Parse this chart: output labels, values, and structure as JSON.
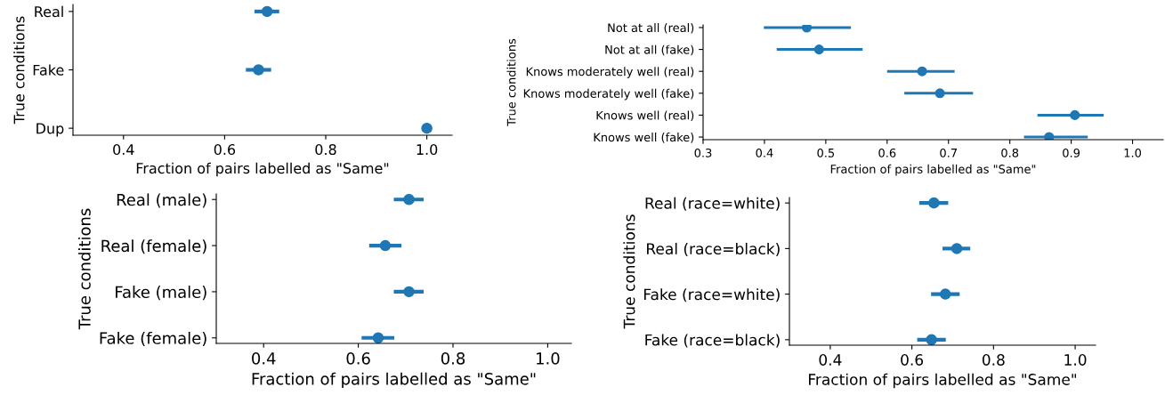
{
  "chart_data": [
    {
      "type": "scatter",
      "orientation": "horizontal",
      "xlabel": "Fraction of pairs labelled as \"Same\"",
      "ylabel": "True conditions",
      "categories": [
        "Real",
        "Fake",
        "Dup"
      ],
      "xlim": [
        0.3,
        1.05
      ],
      "xticks": [
        {
          "value": 0.4,
          "label": "0.4"
        },
        {
          "value": 0.6,
          "label": "0.6"
        },
        {
          "value": 0.8,
          "label": "0.8"
        },
        {
          "value": 1.0,
          "label": "1.0"
        }
      ],
      "marker": "circle",
      "grid": false,
      "series": [
        {
          "color": "#1f77b4",
          "values": [
            0.684,
            0.667,
            1.0
          ],
          "errors": [
            [
              0.659,
              0.708
            ],
            [
              0.642,
              0.692
            ],
            null
          ]
        }
      ]
    },
    {
      "type": "scatter",
      "orientation": "horizontal",
      "xlabel": "Fraction of pairs labelled as \"Same\"",
      "ylabel": "True conditions",
      "categories": [
        "Not at all (real)",
        "Not at all (fake)",
        "Knows moderately well (real)",
        "Knows moderately well (fake)",
        "Knows well (real)",
        "Knows well (fake)"
      ],
      "xlim": [
        0.3,
        1.05
      ],
      "xticks": [
        {
          "value": 0.3,
          "label": "0.3"
        },
        {
          "value": 0.4,
          "label": "0.4"
        },
        {
          "value": 0.5,
          "label": "0.5"
        },
        {
          "value": 0.6,
          "label": "0.6"
        },
        {
          "value": 0.7,
          "label": "0.7"
        },
        {
          "value": 0.8,
          "label": "0.8"
        },
        {
          "value": 0.9,
          "label": "0.9"
        },
        {
          "value": 1.0,
          "label": "1.0"
        }
      ],
      "marker": "circle",
      "grid": false,
      "series": [
        {
          "color": "#1f77b4",
          "values": [
            0.469,
            0.489,
            0.657,
            0.686,
            0.906,
            0.864
          ],
          "errors": [
            [
              0.399,
              0.541
            ],
            [
              0.42,
              0.56
            ],
            [
              0.6,
              0.71
            ],
            [
              0.628,
              0.74
            ],
            [
              0.845,
              0.953
            ],
            [
              0.823,
              0.927
            ]
          ]
        }
      ]
    },
    {
      "type": "scatter",
      "orientation": "horizontal",
      "xlabel": "Fraction of pairs labelled as \"Same\"",
      "ylabel": "True conditions",
      "categories": [
        "Real (male)",
        "Real (female)",
        "Fake (male)",
        "Fake (female)"
      ],
      "xlim": [
        0.3,
        1.05
      ],
      "xticks": [
        {
          "value": 0.4,
          "label": "0.4"
        },
        {
          "value": 0.6,
          "label": "0.6"
        },
        {
          "value": 0.8,
          "label": "0.8"
        },
        {
          "value": 1.0,
          "label": "1.0"
        }
      ],
      "marker": "circle",
      "grid": false,
      "series": [
        {
          "color": "#1f77b4",
          "values": [
            0.707,
            0.657,
            0.707,
            0.642
          ],
          "errors": [
            [
              0.675,
              0.738
            ],
            [
              0.623,
              0.691
            ],
            [
              0.675,
              0.738
            ],
            [
              0.607,
              0.676
            ]
          ]
        }
      ]
    },
    {
      "type": "scatter",
      "orientation": "horizontal",
      "xlabel": "Fraction of pairs labelled as \"Same\"",
      "ylabel": "True conditions",
      "categories": [
        "Real (race=white)",
        "Real (race=black)",
        "Fake (race=white)",
        "Fake (race=black)"
      ],
      "xlim": [
        0.3,
        1.05
      ],
      "xticks": [
        {
          "value": 0.4,
          "label": "0.4"
        },
        {
          "value": 0.6,
          "label": "0.6"
        },
        {
          "value": 0.8,
          "label": "0.8"
        },
        {
          "value": 1.0,
          "label": "1.0"
        }
      ],
      "marker": "circle",
      "grid": false,
      "series": [
        {
          "color": "#1f77b4",
          "values": [
            0.654,
            0.71,
            0.682,
            0.648
          ],
          "errors": [
            [
              0.618,
              0.689
            ],
            [
              0.675,
              0.743
            ],
            [
              0.647,
              0.717
            ],
            [
              0.613,
              0.683
            ]
          ]
        }
      ]
    }
  ]
}
